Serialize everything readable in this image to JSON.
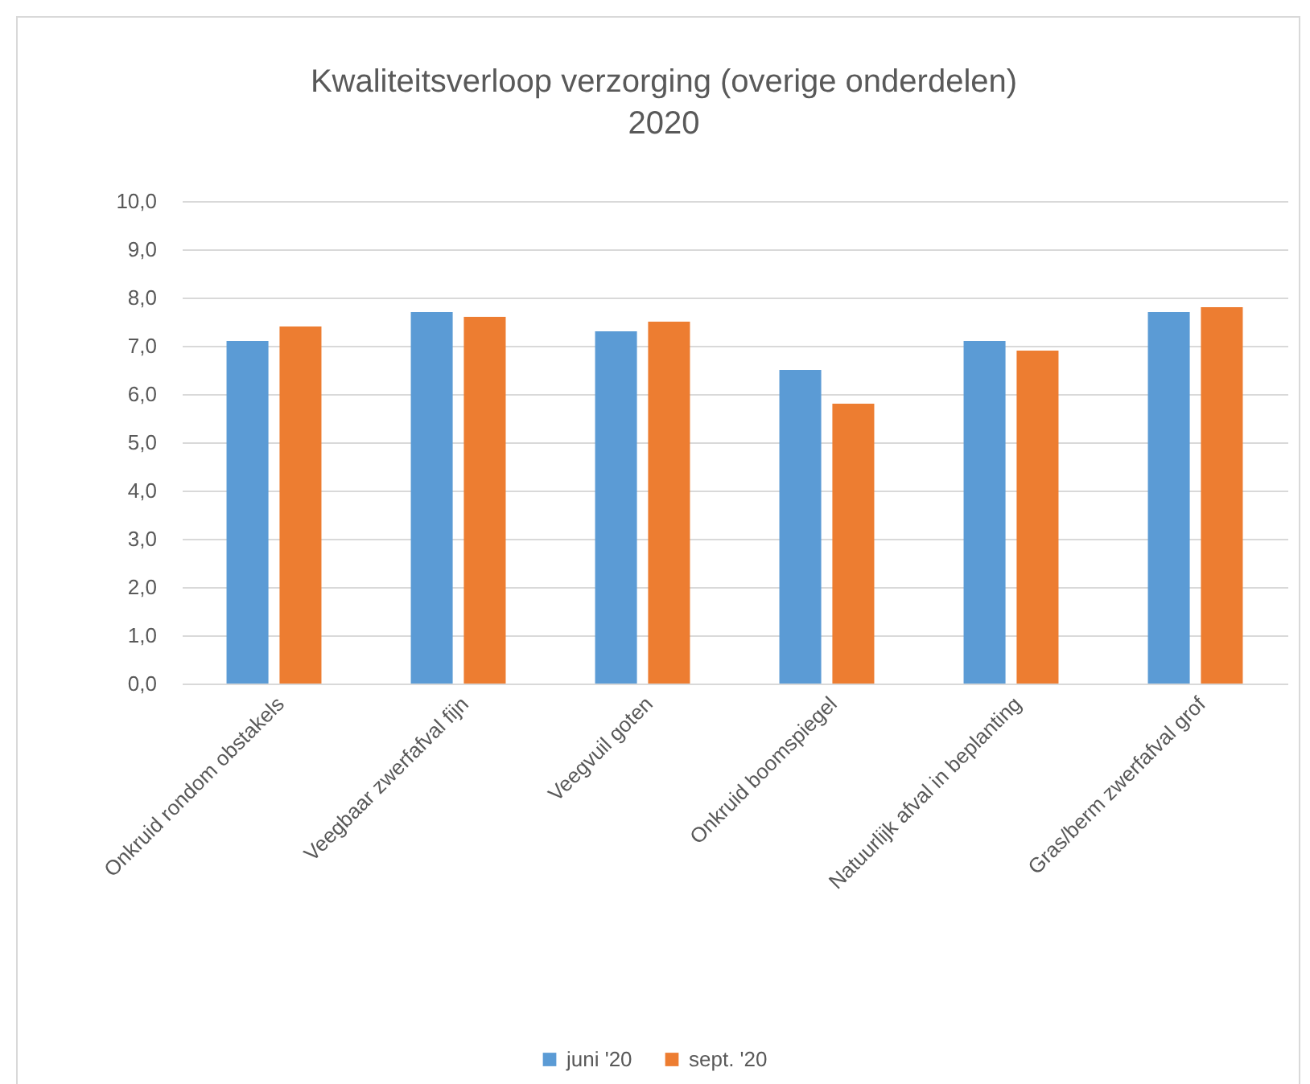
{
  "chart_data": {
    "type": "bar",
    "title": "Kwaliteitsverloop verzorging (overige onderdelen)",
    "subtitle": "2020",
    "categories": [
      "Onkruid rondom obstakels",
      "Veegbaar zwerfafval fijn",
      "Veegvuil goten",
      "Onkruid boomspiegel",
      "Natuurlijk afval in beplanting",
      "Gras/berm zwerfafval grof"
    ],
    "series": [
      {
        "name": "juni '20",
        "color": "#5b9bd5",
        "values": [
          7.1,
          7.7,
          7.3,
          6.5,
          7.1,
          7.7
        ]
      },
      {
        "name": "sept. '20",
        "color": "#ed7d31",
        "values": [
          7.4,
          7.6,
          7.5,
          5.8,
          6.9,
          7.8
        ]
      }
    ],
    "ylim": [
      0,
      10
    ],
    "yticks": [
      {
        "value": 0,
        "label": "0,0"
      },
      {
        "value": 1,
        "label": "1,0"
      },
      {
        "value": 2,
        "label": "2,0"
      },
      {
        "value": 3,
        "label": "3,0"
      },
      {
        "value": 4,
        "label": "4,0"
      },
      {
        "value": 5,
        "label": "5,0"
      },
      {
        "value": 6,
        "label": "6,0"
      },
      {
        "value": 7,
        "label": "7,0"
      },
      {
        "value": 8,
        "label": "8,0"
      },
      {
        "value": 9,
        "label": "9,0"
      },
      {
        "value": 10,
        "label": "10,0"
      }
    ],
    "grid": "y",
    "legend": "bottom"
  }
}
